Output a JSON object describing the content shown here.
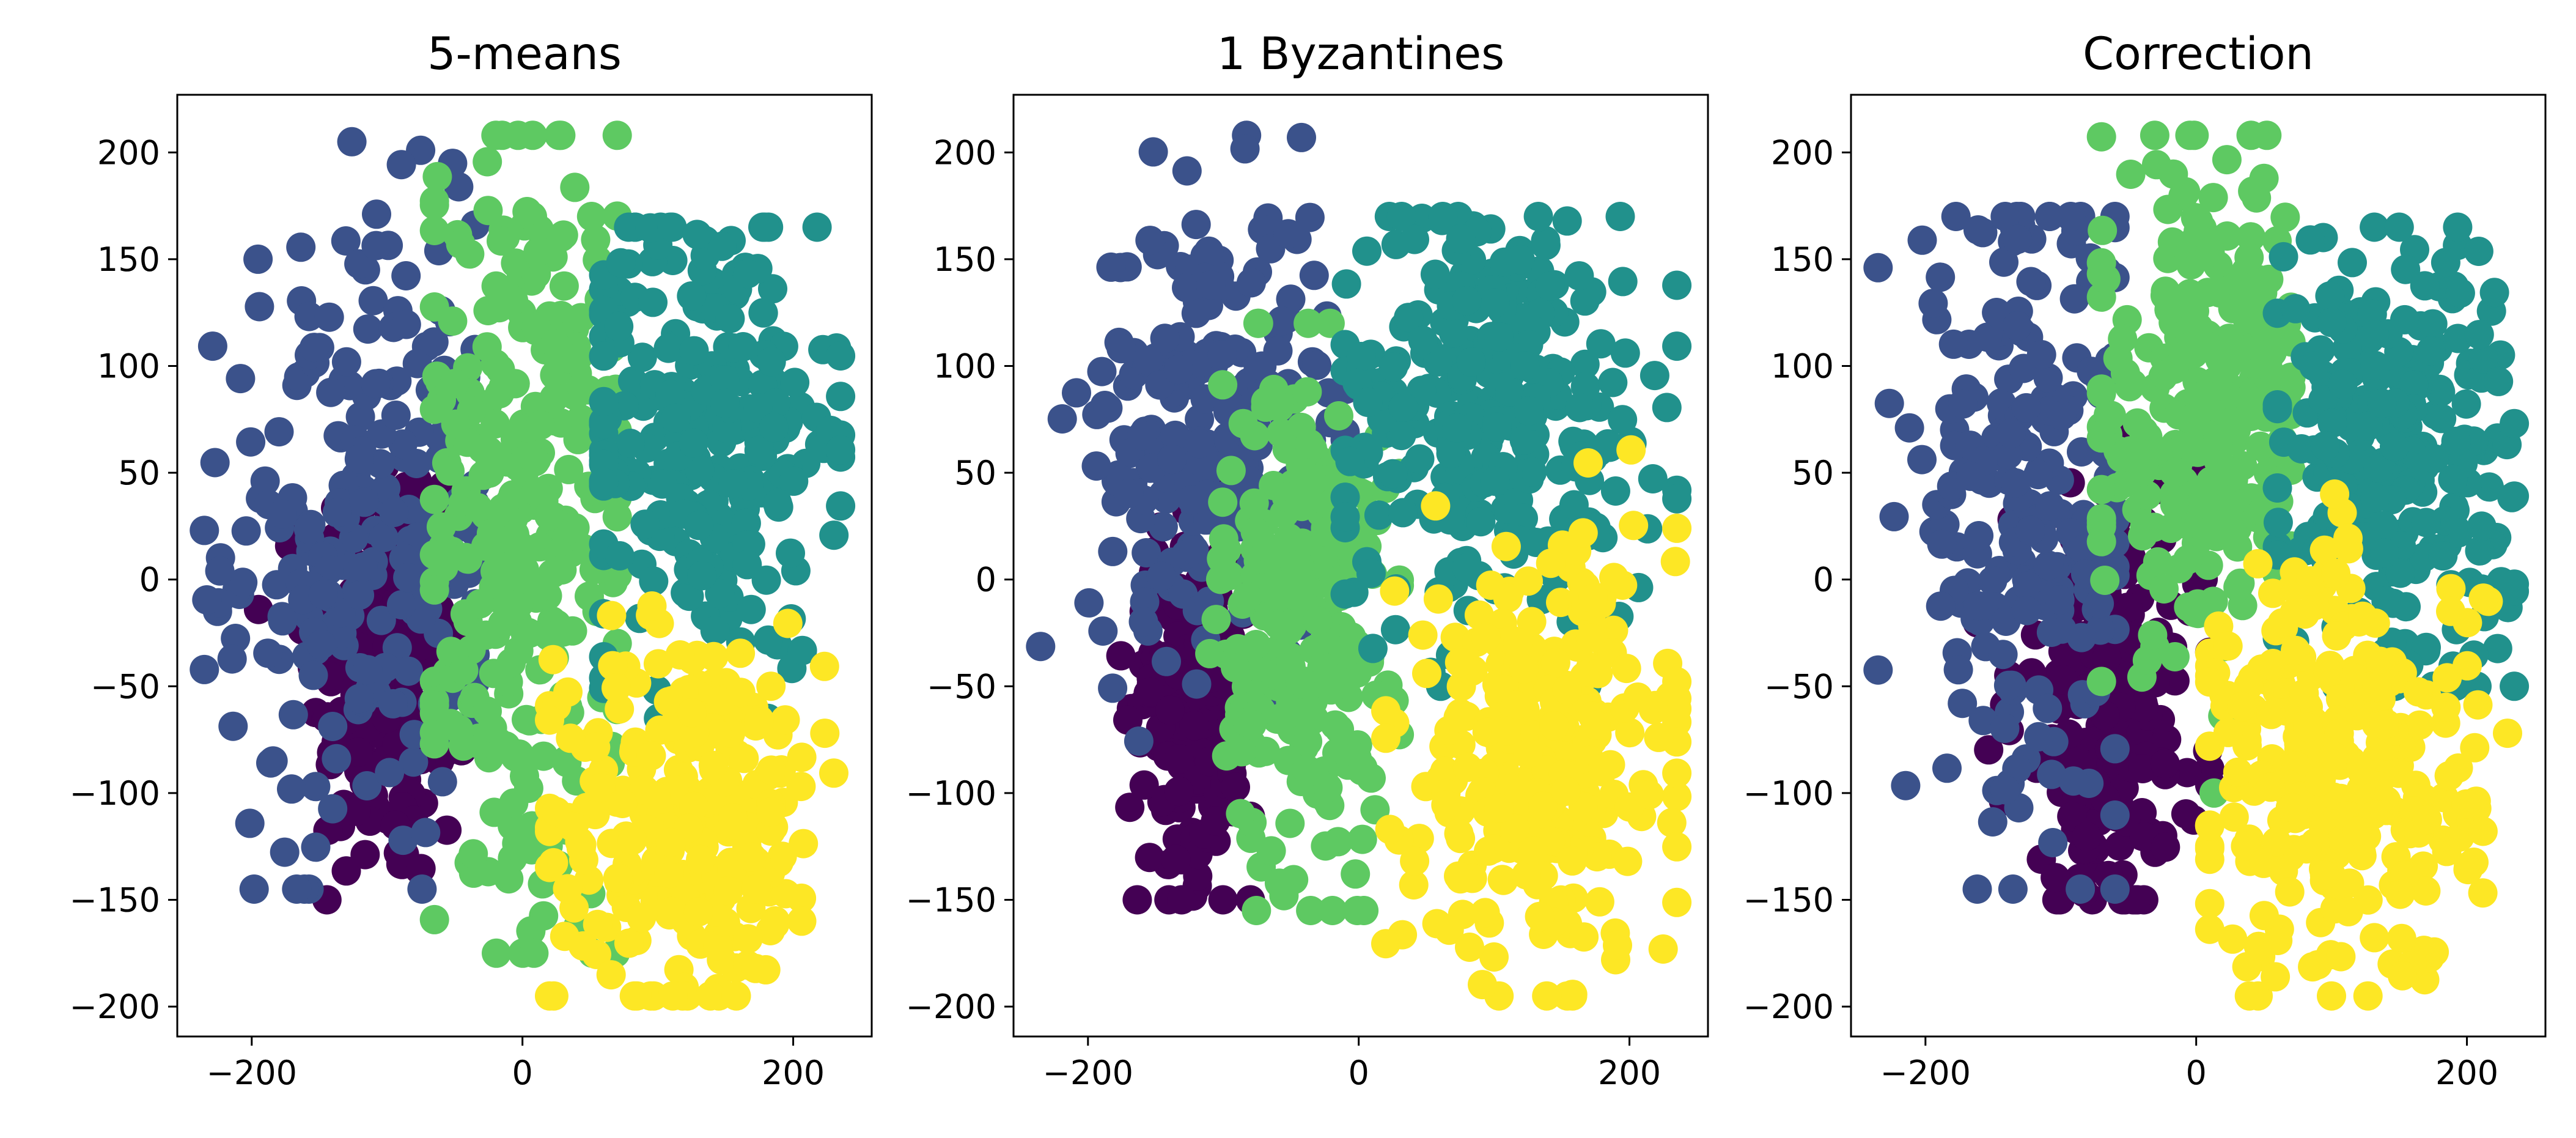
{
  "chart_data": [
    {
      "type": "scatter",
      "title": "5-means",
      "xlabel": "",
      "ylabel": "",
      "xlim": [
        -255,
        258
      ],
      "ylim": [
        -214,
        227
      ],
      "xticks": [
        -200,
        0,
        200
      ],
      "yticks": [
        -200,
        -150,
        -100,
        -50,
        0,
        50,
        100,
        150,
        200
      ],
      "grid": false,
      "legend": "none",
      "clusters": [
        {
          "color": "#440154",
          "center": [
            -98,
            -40
          ],
          "spread": [
            30,
            55
          ],
          "range": [
            -195,
            -45,
            -150,
            95
          ],
          "count": 210
        },
        {
          "color": "#3b528b",
          "center": [
            -120,
            20
          ],
          "spread": [
            50,
            75
          ],
          "range": [
            -235,
            -35,
            -145,
            205
          ],
          "count": 230
        },
        {
          "color": "#5ec962",
          "center": [
            0,
            20
          ],
          "spread": [
            38,
            95
          ],
          "range": [
            -65,
            70,
            -175,
            208
          ],
          "count": 290
        },
        {
          "color": "#21918c",
          "center": [
            135,
            70
          ],
          "spread": [
            50,
            55
          ],
          "range": [
            60,
            235,
            -65,
            165
          ],
          "count": 260
        },
        {
          "color": "#fde725",
          "center": [
            125,
            -110
          ],
          "spread": [
            50,
            45
          ],
          "range": [
            20,
            230,
            -195,
            50
          ],
          "count": 280
        }
      ]
    },
    {
      "type": "scatter",
      "title": "1 Byzantines",
      "xlabel": "",
      "ylabel": "",
      "xlim": [
        -255,
        258
      ],
      "ylim": [
        -214,
        227
      ],
      "xticks": [
        -200,
        0,
        200
      ],
      "yticks": [
        -200,
        -150,
        -100,
        -50,
        0,
        50,
        100,
        150,
        200
      ],
      "grid": false,
      "legend": "none",
      "clusters": [
        {
          "color": "#440154",
          "center": [
            -120,
            -60
          ],
          "spread": [
            25,
            40
          ],
          "range": [
            -200,
            -80,
            -150,
            60
          ],
          "count": 200
        },
        {
          "color": "#3b528b",
          "center": [
            -110,
            70
          ],
          "spread": [
            45,
            55
          ],
          "range": [
            -235,
            -10,
            -145,
            208
          ],
          "count": 230
        },
        {
          "color": "#5ec962",
          "center": [
            -40,
            -20
          ],
          "spread": [
            30,
            60
          ],
          "range": [
            -110,
            30,
            -155,
            120
          ],
          "count": 260
        },
        {
          "color": "#21918c",
          "center": [
            100,
            80
          ],
          "spread": [
            60,
            50
          ],
          "range": [
            -10,
            235,
            -50,
            170
          ],
          "count": 290
        },
        {
          "color": "#fde725",
          "center": [
            135,
            -85
          ],
          "spread": [
            50,
            50
          ],
          "range": [
            20,
            235,
            -195,
            70
          ],
          "count": 300
        }
      ]
    },
    {
      "type": "scatter",
      "title": "Correction",
      "xlabel": "",
      "ylabel": "",
      "xlim": [
        -255,
        258
      ],
      "ylim": [
        -214,
        227
      ],
      "xticks": [
        -200,
        0,
        200
      ],
      "yticks": [
        -200,
        -150,
        -100,
        -50,
        0,
        50,
        100,
        150,
        200
      ],
      "grid": false,
      "legend": "none",
      "clusters": [
        {
          "color": "#440154",
          "center": [
            -65,
            -60
          ],
          "spread": [
            35,
            50
          ],
          "range": [
            -190,
            10,
            -150,
            70
          ],
          "count": 220
        },
        {
          "color": "#3b528b",
          "center": [
            -125,
            30
          ],
          "spread": [
            45,
            70
          ],
          "range": [
            -235,
            -60,
            -145,
            170
          ],
          "count": 220
        },
        {
          "color": "#5ec962",
          "center": [
            5,
            80
          ],
          "spread": [
            40,
            55
          ],
          "range": [
            -70,
            70,
            -100,
            208
          ],
          "count": 260
        },
        {
          "color": "#21918c",
          "center": [
            145,
            60
          ],
          "spread": [
            45,
            55
          ],
          "range": [
            60,
            235,
            -50,
            165
          ],
          "count": 250
        },
        {
          "color": "#fde725",
          "center": [
            110,
            -90
          ],
          "spread": [
            50,
            50
          ],
          "range": [
            10,
            230,
            -195,
            40
          ],
          "count": 300
        }
      ]
    }
  ]
}
